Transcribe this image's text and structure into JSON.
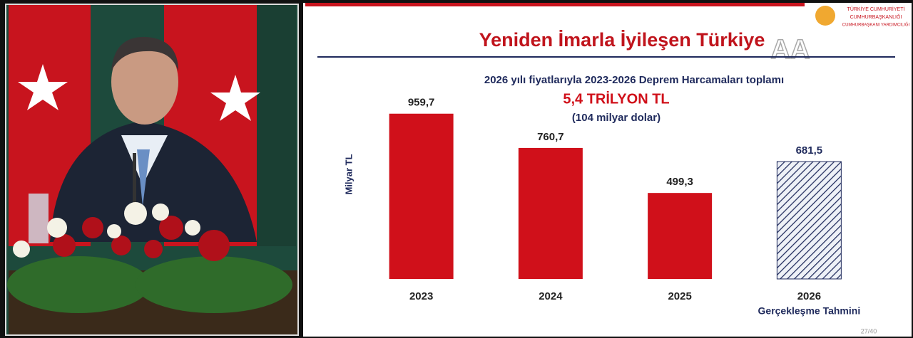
{
  "chart_data": {
    "type": "bar",
    "title": "Yeniden İmarla İyileşen Türkiye",
    "subtitle": "2026 yılı fiyatlarıyla 2023-2026 Deprem Harcamaları toplamı",
    "total": "5,4 TRİLYON TL",
    "total_note": "(104 milyar dolar)",
    "ylabel": "Milyar TL",
    "categories": [
      "2023",
      "2024",
      "2025",
      "2026"
    ],
    "category_notes": [
      null,
      null,
      null,
      "Gerçekleşme Tahmini"
    ],
    "values": [
      959.7,
      760.7,
      499.3,
      681.5
    ],
    "value_labels": [
      "959,7",
      "760,7",
      "499,3",
      "681,5"
    ],
    "hatched": [
      false,
      false,
      false,
      true
    ],
    "color": "#d0101a",
    "hatch_color": "#1f2a5c",
    "ylim": [
      0,
      1000
    ],
    "logo": [
      "TÜRKİYE CUMHURİYETİ",
      "CUMHURBAŞKANLIĞI",
      "CUMHURBAŞKANI YARDIMCILIĞI"
    ],
    "watermark": "AA",
    "page": "27/40"
  }
}
